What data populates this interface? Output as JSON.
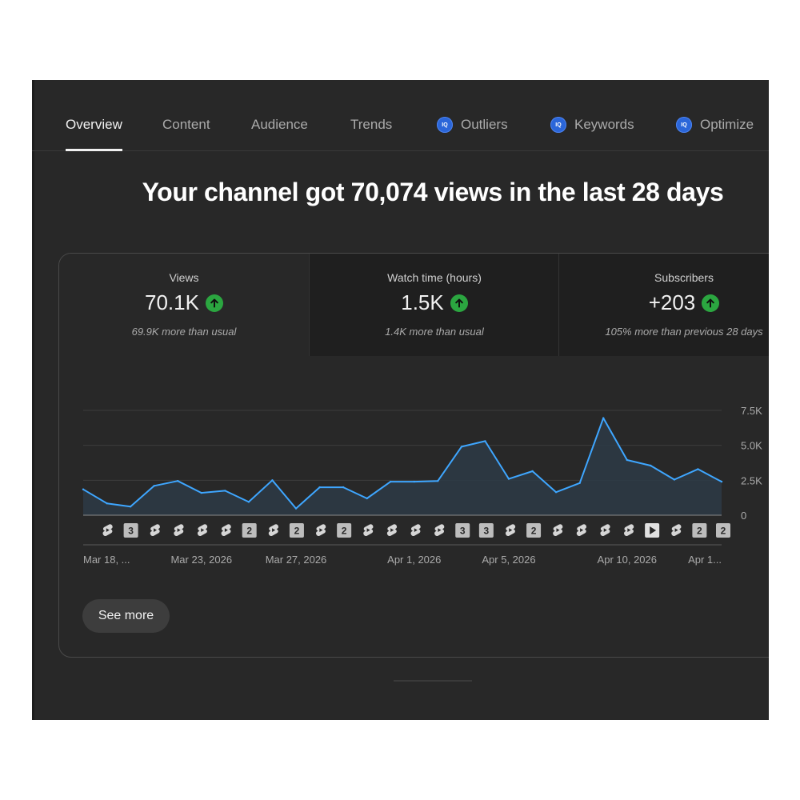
{
  "tabs": [
    {
      "label": "Overview",
      "active": true,
      "badge": ""
    },
    {
      "label": "Content",
      "active": false,
      "badge": ""
    },
    {
      "label": "Audience",
      "active": false,
      "badge": ""
    },
    {
      "label": "Trends",
      "active": false,
      "badge": ""
    },
    {
      "label": "Outliers",
      "active": false,
      "badge": "IQ"
    },
    {
      "label": "Keywords",
      "active": false,
      "badge": "IQ"
    },
    {
      "label": "Optimize",
      "active": false,
      "badge": "IQ"
    }
  ],
  "headline": "Your channel got 70,074 views in the last 28 days",
  "metrics": [
    {
      "label": "Views",
      "value": "70.1K",
      "sub": "69.9K more than usual",
      "trend_icon": "arrow-up-icon"
    },
    {
      "label": "Watch time (hours)",
      "value": "1.5K",
      "sub": "1.4K more than usual",
      "trend_icon": "arrow-up-icon"
    },
    {
      "label": "Subscribers",
      "value": "+203",
      "sub": "105% more than previous 28 days",
      "trend_icon": "arrow-up-icon"
    }
  ],
  "see_more_label": "See more",
  "colors": {
    "background": "#282828",
    "line": "#3ea6ff",
    "area": "#2d3a45",
    "up_badge": "#2ba640",
    "iq_badge": "#2b66d9"
  },
  "chart_data": {
    "type": "area",
    "series": [
      {
        "values": [
          1850,
          850,
          620,
          2100,
          2450,
          1600,
          1750,
          950,
          2500,
          480,
          2000,
          2000,
          1200,
          2400,
          2400,
          2450,
          4900,
          5300,
          2600,
          3150,
          1650,
          2300,
          6950,
          3950,
          3550,
          2550,
          3300,
          2400
        ]
      }
    ],
    "x_tick_labels": [
      "Mar 18, ...",
      "Mar 23, 2026",
      "Mar 27, 2026",
      "Apr 1, 2026",
      "Apr 5, 2026",
      "Apr 10, 2026",
      "Apr 1..."
    ],
    "x_tick_indices": [
      0,
      5,
      9,
      14,
      18,
      23,
      27
    ],
    "y_tick_labels": [
      "7.5K",
      "5.0K",
      "2.5K",
      "0"
    ],
    "y_tick_values": [
      7500,
      5000,
      2500,
      0
    ],
    "ylim": [
      0,
      7500
    ],
    "grid": true,
    "upload_markers": [
      "shorts",
      "3",
      "shorts",
      "shorts",
      "shorts",
      "shorts",
      "2",
      "shorts",
      "2",
      "shorts",
      "2",
      "shorts",
      "shorts",
      "shorts",
      "shorts",
      "3",
      "3",
      "shorts",
      "2",
      "shorts",
      "shorts",
      "shorts",
      "shorts",
      "video",
      "shorts",
      "2",
      "2"
    ]
  }
}
